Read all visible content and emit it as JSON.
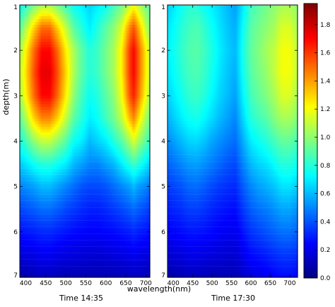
{
  "chart_data": [
    {
      "type": "heatmap",
      "caption": "Time 14:35",
      "xlabel": "wavelength(nm)",
      "ylabel": "depth(m)",
      "x_ticks": [
        400,
        450,
        500,
        550,
        600,
        650,
        700
      ],
      "y_ticks": [
        1,
        2,
        3,
        4,
        5,
        6,
        7
      ],
      "xlim": [
        385,
        710
      ],
      "ylim": [
        1,
        7
      ],
      "y_inverted": true,
      "x": [
        390,
        420,
        440,
        460,
        480,
        500,
        520,
        540,
        560,
        580,
        600,
        620,
        640,
        660,
        670,
        680,
        700,
        710
      ],
      "y": [
        1.0,
        1.5,
        2.0,
        2.5,
        3.0,
        3.5,
        4.0,
        4.5,
        5.0,
        5.5,
        6.0,
        6.5,
        7.0
      ],
      "z": [
        [
          0.75,
          0.95,
          1.05,
          1.05,
          0.95,
          0.85,
          0.75,
          0.7,
          0.65,
          0.7,
          0.75,
          0.85,
          0.95,
          1.1,
          1.2,
          1.1,
          0.95,
          0.9
        ],
        [
          0.95,
          1.3,
          1.5,
          1.5,
          1.3,
          1.1,
          0.9,
          0.8,
          0.7,
          0.8,
          0.9,
          1.0,
          1.15,
          1.45,
          1.55,
          1.4,
          1.1,
          1.0
        ],
        [
          1.1,
          1.5,
          1.7,
          1.7,
          1.5,
          1.25,
          1.05,
          0.9,
          0.8,
          0.85,
          0.95,
          1.05,
          1.25,
          1.6,
          1.7,
          1.55,
          1.25,
          1.1
        ],
        [
          1.15,
          1.55,
          1.75,
          1.75,
          1.55,
          1.3,
          1.05,
          0.9,
          0.8,
          0.85,
          0.95,
          1.05,
          1.25,
          1.6,
          1.7,
          1.55,
          1.25,
          1.1
        ],
        [
          1.1,
          1.5,
          1.7,
          1.7,
          1.5,
          1.25,
          1.0,
          0.85,
          0.75,
          0.8,
          0.9,
          1.0,
          1.2,
          1.55,
          1.65,
          1.5,
          1.2,
          1.05
        ],
        [
          0.95,
          1.3,
          1.45,
          1.45,
          1.3,
          1.1,
          0.9,
          0.8,
          0.7,
          0.75,
          0.85,
          0.95,
          1.1,
          1.35,
          1.45,
          1.3,
          1.05,
          0.95
        ],
        [
          0.8,
          1.0,
          1.1,
          1.1,
          1.0,
          0.9,
          0.75,
          0.7,
          0.6,
          0.65,
          0.7,
          0.8,
          0.9,
          1.05,
          1.15,
          1.05,
          0.9,
          0.85
        ],
        [
          0.65,
          0.75,
          0.8,
          0.8,
          0.75,
          0.7,
          0.6,
          0.55,
          0.5,
          0.5,
          0.55,
          0.6,
          0.7,
          0.8,
          0.85,
          0.8,
          0.7,
          0.65
        ],
        [
          0.5,
          0.55,
          0.6,
          0.6,
          0.55,
          0.5,
          0.45,
          0.4,
          0.38,
          0.38,
          0.4,
          0.45,
          0.5,
          0.55,
          0.6,
          0.55,
          0.5,
          0.45
        ],
        [
          0.38,
          0.42,
          0.45,
          0.45,
          0.42,
          0.38,
          0.35,
          0.32,
          0.3,
          0.3,
          0.32,
          0.35,
          0.38,
          0.42,
          0.45,
          0.42,
          0.38,
          0.35
        ],
        [
          0.28,
          0.3,
          0.32,
          0.32,
          0.3,
          0.28,
          0.26,
          0.25,
          0.24,
          0.24,
          0.25,
          0.26,
          0.28,
          0.3,
          0.32,
          0.3,
          0.28,
          0.26
        ],
        [
          0.18,
          0.2,
          0.22,
          0.22,
          0.2,
          0.19,
          0.18,
          0.17,
          0.16,
          0.16,
          0.17,
          0.18,
          0.19,
          0.2,
          0.22,
          0.2,
          0.19,
          0.18
        ],
        [
          0.08,
          0.1,
          0.12,
          0.12,
          0.11,
          0.1,
          0.1,
          0.1,
          0.1,
          0.1,
          0.1,
          0.1,
          0.11,
          0.12,
          0.13,
          0.12,
          0.11,
          0.1
        ]
      ]
    },
    {
      "type": "heatmap",
      "caption": "Time 17:30",
      "xlabel": "",
      "ylabel": "",
      "x_ticks": [
        400,
        450,
        500,
        550,
        600,
        650,
        700
      ],
      "y_ticks": [
        1,
        2,
        3,
        4,
        5,
        6,
        7
      ],
      "xlim": [
        385,
        720
      ],
      "ylim": [
        1,
        7
      ],
      "y_inverted": true,
      "x": [
        390,
        420,
        440,
        460,
        480,
        500,
        520,
        540,
        560,
        580,
        600,
        620,
        640,
        660,
        680,
        700,
        720
      ],
      "y": [
        1.0,
        1.5,
        2.0,
        2.5,
        3.0,
        3.5,
        4.0,
        4.5,
        5.0,
        5.5,
        6.0,
        6.5,
        7.0
      ],
      "z": [
        [
          0.65,
          0.75,
          0.8,
          0.8,
          0.75,
          0.7,
          0.65,
          0.6,
          0.55,
          0.7,
          0.85,
          0.9,
          0.95,
          1.0,
          1.05,
          1.05,
          1.0
        ],
        [
          0.7,
          0.8,
          0.85,
          0.88,
          0.82,
          0.75,
          0.68,
          0.62,
          0.58,
          0.75,
          0.9,
          0.95,
          1.0,
          1.05,
          1.15,
          1.15,
          1.05
        ],
        [
          0.72,
          0.82,
          0.88,
          0.9,
          0.85,
          0.78,
          0.7,
          0.64,
          0.6,
          0.78,
          0.92,
          0.98,
          1.05,
          1.1,
          1.2,
          1.2,
          1.1
        ],
        [
          0.7,
          0.8,
          0.86,
          0.88,
          0.83,
          0.76,
          0.68,
          0.62,
          0.58,
          0.76,
          0.9,
          0.96,
          1.02,
          1.1,
          1.2,
          1.2,
          1.1
        ],
        [
          0.66,
          0.76,
          0.82,
          0.84,
          0.8,
          0.72,
          0.65,
          0.6,
          0.55,
          0.72,
          0.86,
          0.92,
          0.98,
          1.05,
          1.15,
          1.15,
          1.05
        ],
        [
          0.6,
          0.7,
          0.75,
          0.77,
          0.72,
          0.66,
          0.6,
          0.55,
          0.5,
          0.66,
          0.8,
          0.85,
          0.9,
          0.98,
          1.05,
          1.05,
          0.98
        ],
        [
          0.52,
          0.6,
          0.65,
          0.66,
          0.62,
          0.56,
          0.52,
          0.48,
          0.45,
          0.58,
          0.7,
          0.75,
          0.8,
          0.86,
          0.92,
          0.92,
          0.86
        ],
        [
          0.44,
          0.5,
          0.54,
          0.55,
          0.52,
          0.48,
          0.44,
          0.4,
          0.38,
          0.5,
          0.6,
          0.65,
          0.68,
          0.74,
          0.8,
          0.8,
          0.75
        ],
        [
          0.36,
          0.4,
          0.44,
          0.45,
          0.42,
          0.38,
          0.35,
          0.33,
          0.32,
          0.42,
          0.5,
          0.55,
          0.58,
          0.62,
          0.68,
          0.68,
          0.64
        ],
        [
          0.3,
          0.33,
          0.36,
          0.36,
          0.34,
          0.31,
          0.29,
          0.27,
          0.26,
          0.35,
          0.42,
          0.46,
          0.48,
          0.52,
          0.56,
          0.56,
          0.52
        ],
        [
          0.24,
          0.26,
          0.28,
          0.28,
          0.27,
          0.25,
          0.23,
          0.22,
          0.21,
          0.28,
          0.34,
          0.37,
          0.4,
          0.43,
          0.46,
          0.46,
          0.43
        ],
        [
          0.16,
          0.18,
          0.2,
          0.2,
          0.19,
          0.18,
          0.17,
          0.16,
          0.16,
          0.21,
          0.26,
          0.28,
          0.3,
          0.33,
          0.35,
          0.35,
          0.33
        ],
        [
          0.08,
          0.1,
          0.12,
          0.12,
          0.11,
          0.1,
          0.1,
          0.1,
          0.1,
          0.14,
          0.18,
          0.2,
          0.22,
          0.24,
          0.26,
          0.26,
          0.24
        ]
      ]
    }
  ],
  "colorbar": {
    "colormap": "jet",
    "min": 0.0,
    "max": 1.95,
    "ticks": [
      "0.0",
      "0.2",
      "0.4",
      "0.6",
      "0.8",
      "1.0",
      "1.2",
      "1.4",
      "1.6",
      "1.8"
    ]
  }
}
